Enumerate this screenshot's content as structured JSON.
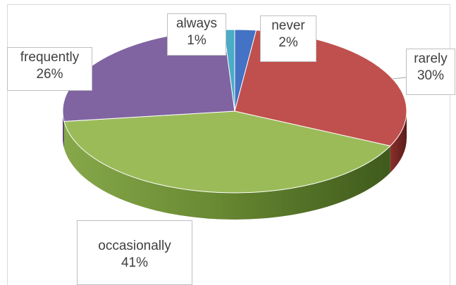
{
  "chart_data": {
    "type": "pie",
    "style": "3d-pie",
    "series": [
      {
        "name": "",
        "labels": [
          "never",
          "rarely",
          "occasionally",
          "frequently",
          "always"
        ],
        "values": [
          2,
          30,
          41,
          26,
          1
        ]
      }
    ],
    "slices": [
      {
        "label": "never",
        "value": 2,
        "display": "2%",
        "color": "#4472c4"
      },
      {
        "label": "rarely",
        "value": 30,
        "display": "30%",
        "color": "#c0504d"
      },
      {
        "label": "occasionally",
        "value": 41,
        "display": "41%",
        "color": "#9bbb59"
      },
      {
        "label": "frequently",
        "value": 26,
        "display": "26%",
        "color": "#8064a2"
      },
      {
        "label": "always",
        "value": 1,
        "display": "1%",
        "color": "#4bacc6"
      }
    ],
    "title": "",
    "legend": "none",
    "data_labels": "category and percentage in callout boxes"
  }
}
